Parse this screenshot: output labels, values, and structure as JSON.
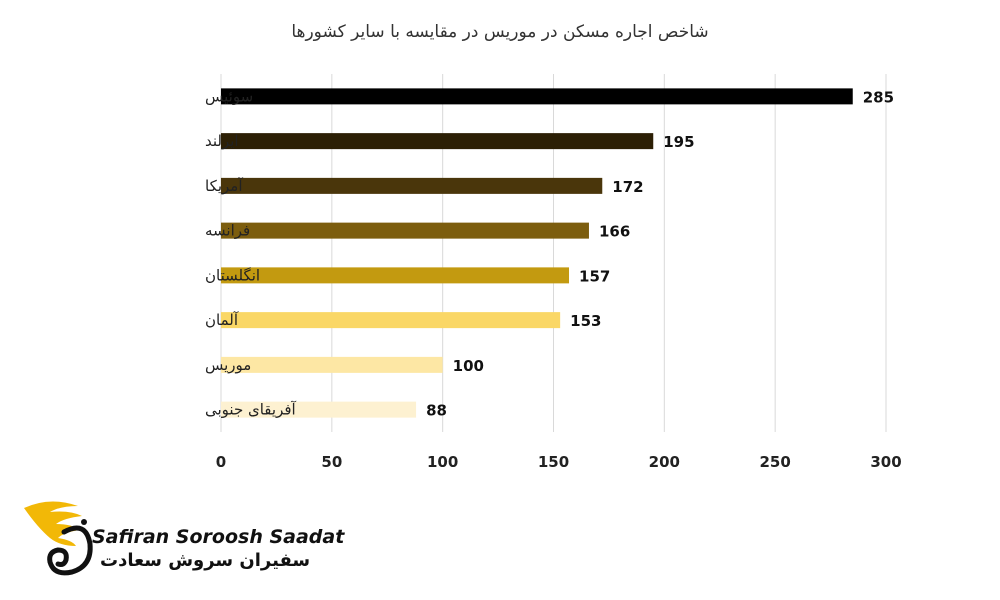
{
  "chart_data": {
    "type": "bar",
    "orientation": "horizontal",
    "title": "شاخص اجاره مسکن در موریس در مقایسه با سایر کشورها",
    "categories": [
      "سوئیس",
      "ایرلند",
      "آمریکا",
      "فرانسه",
      "انگلستان",
      "آلمان",
      "موریس",
      "آفریقای جنوبی"
    ],
    "values": [
      285,
      195,
      172,
      166,
      157,
      153,
      100,
      88
    ],
    "colors": [
      "#000000",
      "#2c1f05",
      "#4a360b",
      "#7c5d0e",
      "#c39a10",
      "#fad766",
      "#fde7a4",
      "#fdf1d1"
    ],
    "xlim": [
      0,
      300
    ],
    "xticks": [
      0,
      50,
      100,
      150,
      200,
      250,
      300
    ],
    "xticks_text": [
      "0",
      "50",
      "100",
      "150",
      "200",
      "250",
      "300"
    ],
    "values_text": [
      "285",
      "195",
      "172",
      "166",
      "157",
      "153",
      "100",
      "88"
    ],
    "grid": true,
    "legend": "none",
    "data_labels": true
  },
  "brand": {
    "name_en": "Safiran Soroosh Saadat",
    "name_fa": "سفیران سروش سعادت",
    "logo_color": "#f2b807"
  }
}
